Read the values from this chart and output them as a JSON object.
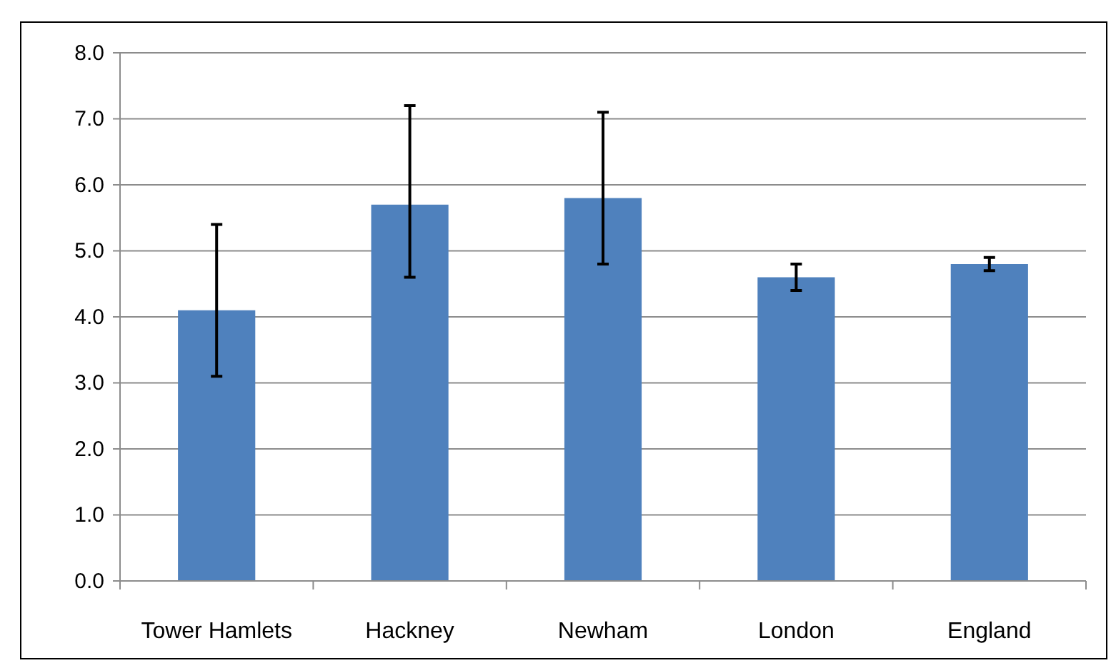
{
  "chart_data": {
    "type": "bar",
    "categories": [
      "Tower Hamlets",
      "Hackney",
      "Newham",
      "London",
      "England"
    ],
    "values": [
      4.1,
      5.7,
      5.8,
      4.6,
      4.8
    ],
    "color": "#4f81bd",
    "errors": [
      [
        3.1,
        5.4
      ],
      [
        4.6,
        7.2
      ],
      [
        4.8,
        7.1
      ],
      [
        4.4,
        4.8
      ],
      [
        4.7,
        4.9
      ]
    ],
    "ylim": [
      0,
      8
    ],
    "yticks": [
      {
        "value": 0,
        "label": "0.0"
      },
      {
        "value": 1,
        "label": "1.0"
      },
      {
        "value": 2,
        "label": "2.0"
      },
      {
        "value": 3,
        "label": "3.0"
      },
      {
        "value": 4,
        "label": "4.0"
      },
      {
        "value": 5,
        "label": "5.0"
      },
      {
        "value": 6,
        "label": "6.0"
      },
      {
        "value": 7,
        "label": "7.0"
      },
      {
        "value": 8,
        "label": "8.0"
      }
    ],
    "grid": "y"
  }
}
